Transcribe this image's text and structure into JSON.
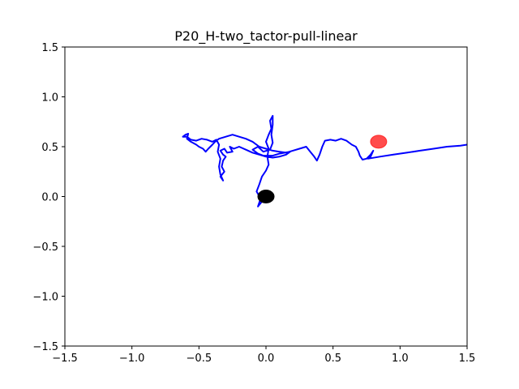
{
  "chart_data": {
    "type": "scatter",
    "title": "P20_H-two_tactor-pull-linear",
    "xlabel": "",
    "ylabel": "",
    "xlim": [
      -1.5,
      1.5
    ],
    "ylim": [
      -1.5,
      1.5
    ],
    "xticks": [
      -1.5,
      -1.0,
      -0.5,
      0.0,
      0.5,
      1.0,
      1.5
    ],
    "yticks": [
      -1.5,
      -1.0,
      -0.5,
      0.0,
      0.5,
      1.0,
      1.5
    ],
    "xtick_labels": [
      "−1.5",
      "−1.0",
      "−0.5",
      "0.0",
      "0.5",
      "1.0",
      "1.5"
    ],
    "ytick_labels": [
      "−1.5",
      "−1.0",
      "−0.5",
      "0.0",
      "0.5",
      "1.0",
      "1.5"
    ],
    "grid": false,
    "series": [
      {
        "kind": "line",
        "color": "#0000ff",
        "points": [
          [
            0.0,
            0.0
          ],
          [
            -0.03,
            -0.05
          ],
          [
            -0.06,
            -0.1
          ],
          [
            -0.04,
            -0.02
          ],
          [
            -0.07,
            0.05
          ],
          [
            -0.05,
            0.12
          ],
          [
            -0.03,
            0.2
          ],
          [
            0.0,
            0.26
          ],
          [
            0.02,
            0.32
          ],
          [
            0.01,
            0.4
          ],
          [
            0.02,
            0.48
          ],
          [
            0.0,
            0.55
          ],
          [
            0.02,
            0.62
          ],
          [
            0.04,
            0.68
          ],
          [
            0.03,
            0.76
          ],
          [
            0.05,
            0.81
          ],
          [
            0.05,
            0.72
          ],
          [
            0.04,
            0.62
          ],
          [
            0.05,
            0.54
          ],
          [
            0.03,
            0.47
          ],
          [
            -0.02,
            0.45
          ],
          [
            -0.06,
            0.5
          ],
          [
            -0.1,
            0.47
          ],
          [
            -0.06,
            0.43
          ],
          [
            -0.02,
            0.41
          ],
          [
            0.05,
            0.41
          ],
          [
            0.1,
            0.43
          ],
          [
            0.14,
            0.44
          ],
          [
            0.18,
            0.45
          ],
          [
            0.15,
            0.42
          ],
          [
            0.1,
            0.4
          ],
          [
            0.05,
            0.39
          ],
          [
            0.0,
            0.4
          ],
          [
            -0.05,
            0.42
          ],
          [
            -0.1,
            0.44
          ],
          [
            -0.15,
            0.47
          ],
          [
            -0.2,
            0.5
          ],
          [
            -0.24,
            0.48
          ],
          [
            -0.27,
            0.5
          ],
          [
            -0.25,
            0.45
          ],
          [
            -0.29,
            0.44
          ],
          [
            -0.31,
            0.48
          ],
          [
            -0.34,
            0.46
          ],
          [
            -0.32,
            0.42
          ],
          [
            -0.3,
            0.4
          ],
          [
            -0.32,
            0.36
          ],
          [
            -0.33,
            0.3
          ],
          [
            -0.31,
            0.25
          ],
          [
            -0.34,
            0.2
          ],
          [
            -0.32,
            0.16
          ],
          [
            -0.34,
            0.22
          ],
          [
            -0.35,
            0.3
          ],
          [
            -0.34,
            0.38
          ],
          [
            -0.36,
            0.45
          ],
          [
            -0.35,
            0.52
          ],
          [
            -0.37,
            0.57
          ],
          [
            -0.4,
            0.55
          ],
          [
            -0.44,
            0.57
          ],
          [
            -0.48,
            0.58
          ],
          [
            -0.52,
            0.56
          ],
          [
            -0.56,
            0.57
          ],
          [
            -0.59,
            0.6
          ],
          [
            -0.62,
            0.6
          ],
          [
            -0.6,
            0.62
          ],
          [
            -0.58,
            0.63
          ],
          [
            -0.59,
            0.58
          ],
          [
            -0.56,
            0.55
          ],
          [
            -0.52,
            0.52
          ],
          [
            -0.5,
            0.5
          ],
          [
            -0.47,
            0.48
          ],
          [
            -0.45,
            0.45
          ],
          [
            -0.43,
            0.48
          ],
          [
            -0.4,
            0.52
          ],
          [
            -0.38,
            0.55
          ],
          [
            -0.35,
            0.58
          ],
          [
            -0.3,
            0.6
          ],
          [
            -0.25,
            0.62
          ],
          [
            -0.2,
            0.6
          ],
          [
            -0.15,
            0.58
          ],
          [
            -0.1,
            0.55
          ],
          [
            -0.05,
            0.5
          ],
          [
            0.0,
            0.48
          ],
          [
            0.05,
            0.46
          ],
          [
            0.1,
            0.45
          ],
          [
            0.15,
            0.44
          ],
          [
            0.2,
            0.46
          ],
          [
            0.25,
            0.48
          ],
          [
            0.3,
            0.5
          ],
          [
            0.33,
            0.45
          ],
          [
            0.36,
            0.4
          ],
          [
            0.38,
            0.36
          ],
          [
            0.4,
            0.42
          ],
          [
            0.42,
            0.5
          ],
          [
            0.44,
            0.56
          ],
          [
            0.48,
            0.57
          ],
          [
            0.52,
            0.56
          ],
          [
            0.56,
            0.58
          ],
          [
            0.6,
            0.56
          ],
          [
            0.64,
            0.52
          ],
          [
            0.67,
            0.5
          ],
          [
            0.69,
            0.45
          ],
          [
            0.7,
            0.41
          ],
          [
            0.72,
            0.37
          ],
          [
            0.75,
            0.38
          ],
          [
            0.78,
            0.42
          ],
          [
            0.8,
            0.46
          ],
          [
            0.78,
            0.4
          ],
          [
            0.76,
            0.38
          ],
          [
            0.85,
            0.4
          ],
          [
            0.95,
            0.42
          ],
          [
            1.05,
            0.44
          ],
          [
            1.15,
            0.46
          ],
          [
            1.25,
            0.48
          ],
          [
            1.35,
            0.5
          ],
          [
            1.45,
            0.51
          ],
          [
            1.5,
            0.52
          ]
        ]
      }
    ],
    "markers": [
      {
        "name": "start",
        "x": 0.0,
        "y": 0.0,
        "color": "#000000",
        "opacity": 1.0
      },
      {
        "name": "target",
        "x": 0.84,
        "y": 0.55,
        "color": "#ff0000",
        "opacity": 0.7
      }
    ]
  }
}
